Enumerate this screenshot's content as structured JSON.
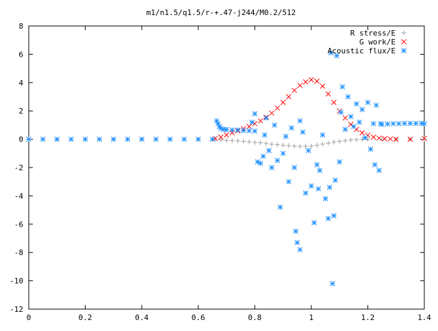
{
  "chart_data": {
    "type": "scatter",
    "title": "m1/n1.5/q1.5/r-+.47-j244/M0.2/512",
    "xlabel": "",
    "ylabel": "",
    "xlim": [
      0,
      1.4
    ],
    "ylim": [
      -12,
      8
    ],
    "xticks": [
      0,
      0.2,
      0.4,
      0.6,
      0.8,
      1,
      1.2,
      1.4
    ],
    "xtick_labels": [
      "0",
      "0.2",
      "0.4",
      "0.6",
      "0.8",
      "1",
      "1.2",
      "1.4"
    ],
    "yticks": [
      -12,
      -10,
      -8,
      -6,
      -4,
      -2,
      0,
      2,
      4,
      6,
      8
    ],
    "ytick_labels": [
      "-12",
      "-10",
      "-8",
      "-6",
      "-4",
      "-2",
      "0",
      "2",
      "4",
      "6",
      "8"
    ],
    "grid": false,
    "legend_position": "top-right",
    "series": [
      {
        "name": "R stress/E",
        "marker": "plus",
        "color": "#a0a0a0",
        "points": [
          [
            0.0,
            0.0
          ],
          [
            0.1,
            0.0
          ],
          [
            0.2,
            0.0
          ],
          [
            0.3,
            0.0
          ],
          [
            0.4,
            0.0
          ],
          [
            0.5,
            0.0
          ],
          [
            0.6,
            0.0
          ],
          [
            0.66,
            0.0
          ],
          [
            0.68,
            -0.05
          ],
          [
            0.7,
            -0.08
          ],
          [
            0.72,
            -0.1
          ],
          [
            0.74,
            -0.12
          ],
          [
            0.76,
            -0.15
          ],
          [
            0.78,
            -0.18
          ],
          [
            0.8,
            -0.22
          ],
          [
            0.82,
            -0.25
          ],
          [
            0.84,
            -0.3
          ],
          [
            0.86,
            -0.35
          ],
          [
            0.88,
            -0.38
          ],
          [
            0.9,
            -0.42
          ],
          [
            0.92,
            -0.45
          ],
          [
            0.94,
            -0.48
          ],
          [
            0.96,
            -0.5
          ],
          [
            0.98,
            -0.5
          ],
          [
            1.0,
            -0.48
          ],
          [
            1.02,
            -0.42
          ],
          [
            1.04,
            -0.35
          ],
          [
            1.06,
            -0.28
          ],
          [
            1.08,
            -0.2
          ],
          [
            1.1,
            -0.15
          ],
          [
            1.12,
            -0.1
          ],
          [
            1.14,
            -0.05
          ],
          [
            1.16,
            -0.03
          ],
          [
            1.18,
            0.0
          ],
          [
            1.2,
            0.0
          ],
          [
            1.25,
            0.0
          ],
          [
            1.3,
            0.0
          ],
          [
            1.35,
            0.0
          ],
          [
            1.4,
            0.0
          ]
        ]
      },
      {
        "name": "G work/E",
        "marker": "cross",
        "color": "#ff0000",
        "points": [
          [
            0.66,
            0.05
          ],
          [
            0.68,
            0.15
          ],
          [
            0.7,
            0.3
          ],
          [
            0.72,
            0.45
          ],
          [
            0.74,
            0.6
          ],
          [
            0.76,
            0.75
          ],
          [
            0.78,
            0.9
          ],
          [
            0.8,
            1.1
          ],
          [
            0.82,
            1.3
          ],
          [
            0.84,
            1.55
          ],
          [
            0.86,
            1.85
          ],
          [
            0.88,
            2.2
          ],
          [
            0.9,
            2.6
          ],
          [
            0.92,
            3.0
          ],
          [
            0.94,
            3.45
          ],
          [
            0.96,
            3.8
          ],
          [
            0.98,
            4.05
          ],
          [
            1.0,
            4.2
          ],
          [
            1.02,
            4.1
          ],
          [
            1.04,
            3.75
          ],
          [
            1.06,
            3.2
          ],
          [
            1.08,
            2.6
          ],
          [
            1.1,
            2.0
          ],
          [
            1.12,
            1.5
          ],
          [
            1.14,
            1.05
          ],
          [
            1.16,
            0.7
          ],
          [
            1.18,
            0.45
          ],
          [
            1.2,
            0.28
          ],
          [
            1.22,
            0.15
          ],
          [
            1.24,
            0.08
          ],
          [
            1.26,
            0.04
          ],
          [
            1.28,
            0.02
          ],
          [
            1.3,
            0.0
          ],
          [
            1.35,
            0.0
          ],
          [
            1.4,
            0.05
          ]
        ]
      },
      {
        "name": "Acoustic flux/E",
        "marker": "star",
        "color": "#1e90ff",
        "points": [
          [
            0.0,
            0.0
          ],
          [
            0.05,
            0.0
          ],
          [
            0.1,
            0.0
          ],
          [
            0.15,
            0.0
          ],
          [
            0.2,
            0.0
          ],
          [
            0.25,
            0.0
          ],
          [
            0.3,
            0.0
          ],
          [
            0.35,
            0.0
          ],
          [
            0.4,
            0.0
          ],
          [
            0.45,
            0.0
          ],
          [
            0.5,
            0.0
          ],
          [
            0.55,
            0.0
          ],
          [
            0.6,
            0.0
          ],
          [
            0.65,
            0.0
          ],
          [
            0.665,
            1.3
          ],
          [
            0.67,
            1.1
          ],
          [
            0.675,
            0.9
          ],
          [
            0.68,
            0.75
          ],
          [
            0.69,
            0.7
          ],
          [
            0.7,
            0.68
          ],
          [
            0.72,
            0.65
          ],
          [
            0.74,
            0.65
          ],
          [
            0.76,
            0.62
          ],
          [
            0.78,
            0.6
          ],
          [
            0.8,
            0.58
          ],
          [
            0.79,
            1.2
          ],
          [
            0.8,
            1.8
          ],
          [
            0.81,
            -1.6
          ],
          [
            0.82,
            -1.7
          ],
          [
            0.83,
            -1.2
          ],
          [
            0.835,
            0.3
          ],
          [
            0.84,
            1.5
          ],
          [
            0.85,
            -0.8
          ],
          [
            0.86,
            -2.0
          ],
          [
            0.87,
            1.0
          ],
          [
            0.88,
            -1.5
          ],
          [
            0.89,
            -4.8
          ],
          [
            0.9,
            -1.0
          ],
          [
            0.91,
            0.2
          ],
          [
            0.92,
            -3.0
          ],
          [
            0.93,
            0.8
          ],
          [
            0.94,
            -2.0
          ],
          [
            0.945,
            -6.5
          ],
          [
            0.95,
            -7.3
          ],
          [
            0.96,
            -7.8
          ],
          [
            0.96,
            1.3
          ],
          [
            0.97,
            0.5
          ],
          [
            0.98,
            -3.8
          ],
          [
            0.99,
            -0.8
          ],
          [
            1.0,
            -3.3
          ],
          [
            1.01,
            -5.9
          ],
          [
            1.02,
            -1.8
          ],
          [
            1.025,
            -3.5
          ],
          [
            1.03,
            -2.2
          ],
          [
            1.04,
            0.3
          ],
          [
            1.05,
            -4.2
          ],
          [
            1.06,
            -5.6
          ],
          [
            1.065,
            -3.4
          ],
          [
            1.07,
            6.1
          ],
          [
            1.075,
            -10.2
          ],
          [
            1.08,
            -5.4
          ],
          [
            1.085,
            -2.9
          ],
          [
            1.09,
            5.9
          ],
          [
            1.1,
            -1.6
          ],
          [
            1.105,
            1.9
          ],
          [
            1.11,
            3.7
          ],
          [
            1.12,
            0.7
          ],
          [
            1.13,
            3.0
          ],
          [
            1.14,
            1.6
          ],
          [
            1.15,
            0.9
          ],
          [
            1.16,
            2.5
          ],
          [
            1.17,
            1.2
          ],
          [
            1.18,
            2.1
          ],
          [
            1.19,
            0.1
          ],
          [
            1.2,
            2.6
          ],
          [
            1.21,
            -0.7
          ],
          [
            1.22,
            1.1
          ],
          [
            1.225,
            -1.8
          ],
          [
            1.23,
            2.4
          ],
          [
            1.24,
            -2.2
          ],
          [
            1.245,
            1.1
          ],
          [
            1.25,
            1.05
          ],
          [
            1.27,
            1.08
          ],
          [
            1.29,
            1.1
          ],
          [
            1.31,
            1.1
          ],
          [
            1.33,
            1.12
          ],
          [
            1.35,
            1.12
          ],
          [
            1.37,
            1.12
          ],
          [
            1.39,
            1.12
          ],
          [
            1.4,
            1.1
          ]
        ]
      }
    ]
  }
}
